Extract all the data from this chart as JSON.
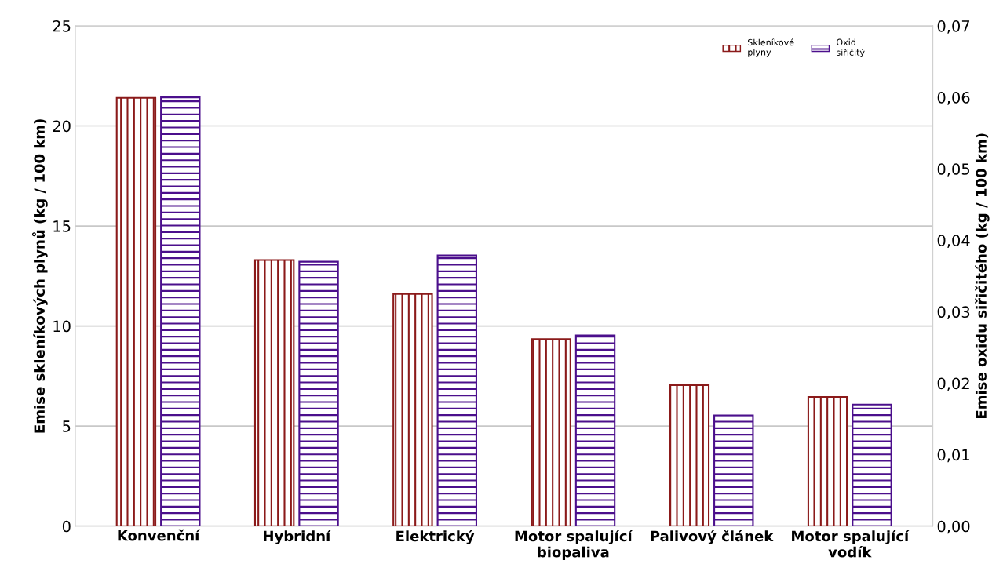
{
  "chart_data": {
    "type": "bar",
    "ylabel": "Emise skleníkových plynů (kg / 100 km)",
    "y2label": "Emise oxidu siřičitého (kg / 100 km)",
    "categories": [
      "Konvenční",
      "Hybridní",
      "Elektrický",
      "Motor spalující\nbiopaliva",
      "Palivový článek",
      "Motor spalující\nvodík"
    ],
    "series": [
      {
        "name": "Skleníkové\nplyny",
        "color": "#8b1a1a",
        "values": [
          21.4,
          13.3,
          11.6,
          9.35,
          7.05,
          6.45
        ]
      },
      {
        "name": "Oxid\nsiřičitý",
        "color": "#4b0f8c",
        "axis": "y2",
        "values": [
          0.06,
          0.037,
          0.0379,
          0.0267,
          0.0155,
          0.017
        ]
      }
    ],
    "ylim": [
      0,
      25
    ],
    "yticks": [
      0,
      5,
      10,
      15,
      20,
      25
    ],
    "y2lim": [
      0,
      0.07
    ],
    "y2ticks": [
      {
        "value": 0,
        "label": "0,00"
      },
      {
        "value": 0.01,
        "label": "0,01"
      },
      {
        "value": 0.02,
        "label": "0,02"
      },
      {
        "value": 0.03,
        "label": "0,03"
      },
      {
        "value": 0.04,
        "label": "0,04"
      },
      {
        "value": 0.05,
        "label": "0,05"
      },
      {
        "value": 0.06,
        "label": "0,06"
      },
      {
        "value": 0.07,
        "label": "0,07"
      }
    ],
    "grid": "y",
    "legend": "top right"
  }
}
